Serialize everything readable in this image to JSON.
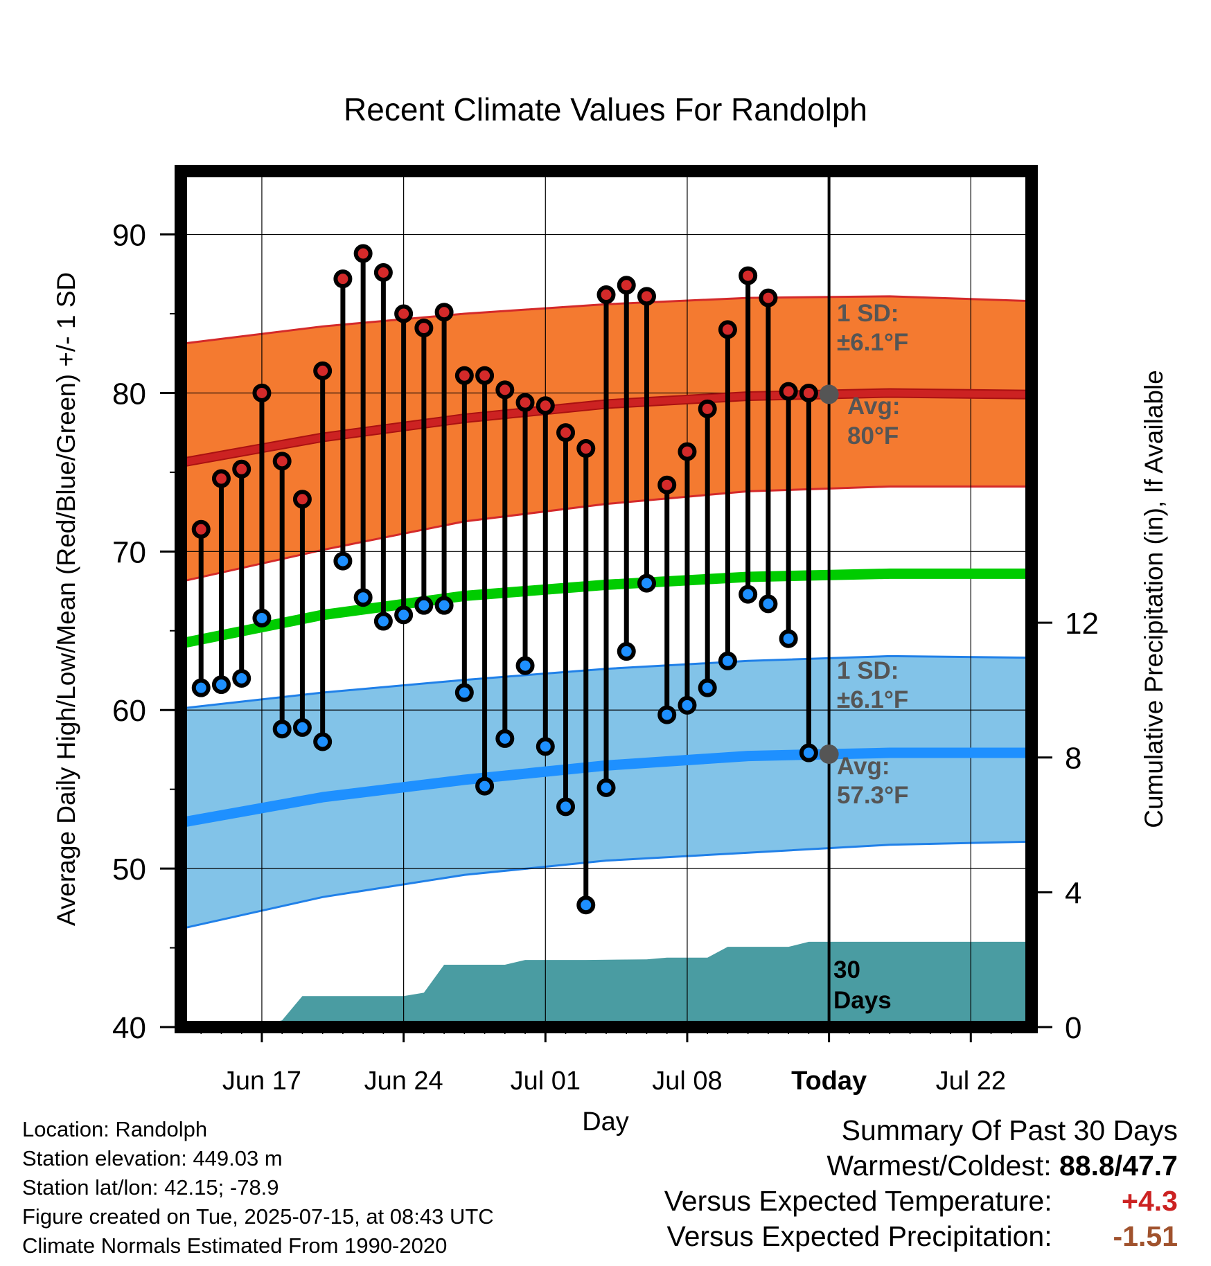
{
  "title": "Recent Climate Values For Randolph",
  "colors": {
    "high_band": "#f47a30",
    "high_band_edge": "#d42a2a",
    "high_avg": "#cc2222",
    "low_band": "#82c3e8",
    "low_band_edge": "#2080e8",
    "low_avg": "#1e90ff",
    "mean": "#00cc00",
    "precip": "#4a9ca2",
    "high_dot": "#d42a2a",
    "low_dot": "#1e90ff",
    "marker": "#555555",
    "annotation": "#555555",
    "warm_value": "#cc2222",
    "precip_value": "#a0522d"
  },
  "chart_data": {
    "type": "line",
    "title": "Recent Climate Values For Randolph",
    "xlabel": "Day",
    "ylabel": "Average Daily High/Low/Mean (Red/Blue/Green) +/- 1 SD",
    "y2label": "Cumulative Precipitation (in), If Available",
    "x_tick_labels": [
      "Jun 17",
      "Jun 24",
      "Jul 01",
      "Jul 08",
      "Today",
      "Jul 22"
    ],
    "x_tick_dates": [
      "2025-06-17",
      "2025-06-24",
      "2025-07-01",
      "2025-07-08",
      "2025-07-15",
      "2025-07-22"
    ],
    "x_range": [
      "2025-06-13",
      "2025-07-25"
    ],
    "ylim": [
      40,
      94
    ],
    "y_ticks": [
      40,
      50,
      60,
      70,
      80,
      90
    ],
    "y2lim": [
      0,
      25.4
    ],
    "y2_ticks": [
      0,
      4,
      8,
      12
    ],
    "grid": true,
    "today": "2025-07-15",
    "observations": {
      "dates": [
        "2025-06-14",
        "2025-06-15",
        "2025-06-16",
        "2025-06-17",
        "2025-06-18",
        "2025-06-19",
        "2025-06-20",
        "2025-06-21",
        "2025-06-22",
        "2025-06-23",
        "2025-06-24",
        "2025-06-25",
        "2025-06-26",
        "2025-06-27",
        "2025-06-28",
        "2025-06-29",
        "2025-06-30",
        "2025-07-01",
        "2025-07-02",
        "2025-07-03",
        "2025-07-04",
        "2025-07-05",
        "2025-07-06",
        "2025-07-07",
        "2025-07-08",
        "2025-07-09",
        "2025-07-10",
        "2025-07-11",
        "2025-07-12",
        "2025-07-13",
        "2025-07-14"
      ],
      "high": [
        71.4,
        74.6,
        75.2,
        80.0,
        75.7,
        73.3,
        81.4,
        87.2,
        88.8,
        87.6,
        85.0,
        84.1,
        85.1,
        81.1,
        81.1,
        80.2,
        79.4,
        79.2,
        77.5,
        76.5,
        86.2,
        86.8,
        86.1,
        74.2,
        76.3,
        79.0,
        84.0,
        87.4,
        86.0,
        80.1,
        80.0
      ],
      "low": [
        61.4,
        61.6,
        62.0,
        65.8,
        58.8,
        58.9,
        58.0,
        69.4,
        67.1,
        65.6,
        66.0,
        66.6,
        66.6,
        61.1,
        55.2,
        58.2,
        62.8,
        57.7,
        53.9,
        47.7,
        55.1,
        63.7,
        68.0,
        59.7,
        60.3,
        61.4,
        63.1,
        67.3,
        66.7,
        64.5,
        57.3
      ]
    },
    "normals": {
      "dates": [
        "2025-06-13",
        "2025-06-20",
        "2025-06-27",
        "2025-07-04",
        "2025-07-11",
        "2025-07-18",
        "2025-07-25"
      ],
      "high_avg": [
        75.6,
        77.2,
        78.4,
        79.3,
        79.8,
        80.0,
        79.9
      ],
      "high_plus_sd": [
        83.1,
        84.2,
        85.0,
        85.6,
        86.0,
        86.1,
        85.8
      ],
      "high_minus_sd": [
        68.1,
        70.1,
        71.9,
        73.0,
        73.8,
        74.1,
        74.1
      ],
      "low_avg": [
        52.9,
        54.5,
        55.6,
        56.5,
        57.1,
        57.3,
        57.3
      ],
      "low_plus_sd": [
        60.1,
        61.1,
        61.9,
        62.6,
        63.1,
        63.4,
        63.3
      ],
      "low_minus_sd": [
        46.2,
        48.2,
        49.6,
        50.5,
        51.0,
        51.5,
        51.7
      ],
      "mean": [
        64.2,
        66.0,
        67.2,
        67.9,
        68.4,
        68.6,
        68.6
      ]
    },
    "precipitation": {
      "dates": [
        "2025-06-13",
        "2025-06-16",
        "2025-06-17",
        "2025-06-18",
        "2025-06-19",
        "2025-06-24",
        "2025-06-25",
        "2025-06-26",
        "2025-06-27",
        "2025-06-29",
        "2025-06-30",
        "2025-07-03",
        "2025-07-06",
        "2025-07-07",
        "2025-07-09",
        "2025-07-10",
        "2025-07-13",
        "2025-07-14",
        "2025-07-25"
      ],
      "cumulative": [
        0.0,
        0.0,
        0.05,
        0.2,
        0.92,
        0.92,
        1.02,
        1.85,
        1.85,
        1.85,
        1.99,
        1.99,
        2.01,
        2.06,
        2.06,
        2.38,
        2.38,
        2.53,
        2.53
      ]
    },
    "annotations": {
      "high_sd": "±6.1°F",
      "high_avg": "80°F",
      "low_sd": "±6.1°F",
      "low_avg": "57.3°F"
    }
  },
  "labels": {
    "sd_title": "1 SD:",
    "avg_title": "Avg:",
    "days_count": "30",
    "days_word": "Days"
  },
  "station": {
    "location": "Location: Randolph",
    "elevation": "Station elevation: 449.03 m",
    "latlon": "Station lat/lon: 42.15; -78.9",
    "created": "Figure created on Tue, 2025-07-15, at 08:43 UTC",
    "normals": "Climate Normals Estimated From 1990-2020"
  },
  "summary": {
    "title": "Summary Of Past 30 Days",
    "warmest_coldest_label": "Warmest/Coldest:",
    "warmest_coldest_value": "88.8/47.7",
    "temp_label": "Versus Expected Temperature:",
    "temp_value": "+4.3",
    "precip_label": "Versus Expected Precipitation:",
    "precip_value": "-1.51"
  }
}
